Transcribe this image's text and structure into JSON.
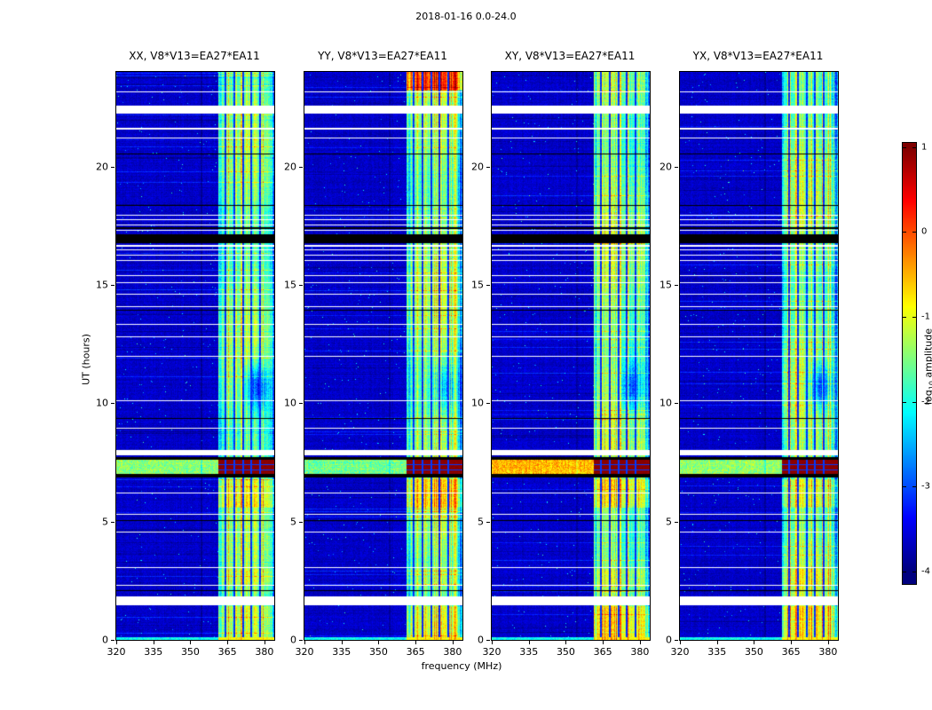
{
  "chart_data": {
    "type": "heatmap",
    "title": "2018-01-16 0.0-24.0",
    "xlabel": "frequency (MHz)",
    "ylabel": "UT (hours)",
    "xlim": [
      320,
      384
    ],
    "ylim": [
      0,
      24
    ],
    "xticks": [
      320,
      335,
      350,
      365,
      380
    ],
    "yticks": [
      0,
      5,
      10,
      15,
      20
    ],
    "colormap": "jet",
    "grid": false,
    "colorbar": {
      "label_pre": "log",
      "label_sub": "10",
      "label_post": " amplitude",
      "ticks": [
        1,
        0,
        -1,
        -2,
        -3,
        -4
      ],
      "vmin": -4.15,
      "vmax": 1.05
    },
    "panels": [
      {
        "id": "XX",
        "title": "XX, V8*V13=EA27*EA11",
        "seed": 11,
        "event_out_level": -1.45,
        "hot_top": 0,
        "blob": 1.2
      },
      {
        "id": "YY",
        "title": "YY, V8*V13=EA27*EA11",
        "seed": 22,
        "event_out_level": -1.55,
        "hot_top": 1.35,
        "blob": 0.6
      },
      {
        "id": "XY",
        "title": "XY, V8*V13=EA27*EA11",
        "seed": 33,
        "event_out_level": -0.55,
        "hot_top": 0,
        "blob": 0.9
      },
      {
        "id": "YX",
        "title": "YX, V8*V13=EA27*EA11",
        "seed": 44,
        "event_out_level": -1.4,
        "hot_top": 0,
        "blob": 1.2
      }
    ],
    "features": {
      "background_level": -3.8,
      "rfi_band": {
        "fmin": 361.5,
        "fmax": 384,
        "base_level": -1.55
      },
      "dark_stripes_mhz": [
        364.3,
        367.8,
        371.3,
        374.8,
        378.3
      ],
      "stripe_half_width": 0.35,
      "event": {
        "t0": 7.0,
        "t1": 7.62,
        "band_level": 0.95,
        "grid_rows": [
          [
            7.17,
            7.21
          ],
          [
            7.38,
            7.42
          ]
        ]
      },
      "bottom_bright_row": [
        0,
        0.12
      ],
      "blob_region": {
        "t0": 9.7,
        "t1": 11.8,
        "fc": 377,
        "tc": 10.7
      },
      "white_gaps": [
        [
          1.45,
          1.82
        ],
        [
          2.27,
          2.32
        ],
        [
          3.02,
          3.06
        ],
        [
          4.52,
          4.56
        ],
        [
          5.3,
          5.34
        ],
        [
          6.2,
          6.24
        ],
        [
          7.8,
          8.04
        ],
        [
          8.92,
          8.96
        ],
        [
          10.1,
          10.13
        ],
        [
          11.97,
          12.01
        ],
        [
          12.78,
          12.82
        ],
        [
          13.32,
          13.36
        ],
        [
          14.07,
          14.11
        ],
        [
          14.57,
          14.61
        ],
        [
          15.07,
          15.11
        ],
        [
          15.38,
          15.42
        ],
        [
          16.02,
          16.06
        ],
        [
          16.22,
          16.26
        ],
        [
          16.45,
          16.49
        ],
        [
          16.63,
          16.67
        ],
        [
          17.28,
          17.33
        ],
        [
          17.5,
          17.55
        ],
        [
          17.72,
          17.77
        ],
        [
          17.92,
          17.97
        ],
        [
          21.17,
          21.22
        ],
        [
          21.58,
          21.63
        ],
        [
          22.22,
          22.58
        ],
        [
          23.12,
          23.16
        ]
      ],
      "black_rows": [
        [
          2.05,
          2.1
        ],
        [
          5.02,
          5.06
        ],
        [
          6.85,
          7.0
        ],
        [
          7.62,
          7.72
        ],
        [
          9.32,
          9.36
        ],
        [
          13.9,
          13.94
        ],
        [
          16.78,
          17.15
        ],
        [
          17.36,
          17.42
        ],
        [
          18.32,
          18.36
        ],
        [
          20.52,
          20.56
        ]
      ]
    }
  }
}
